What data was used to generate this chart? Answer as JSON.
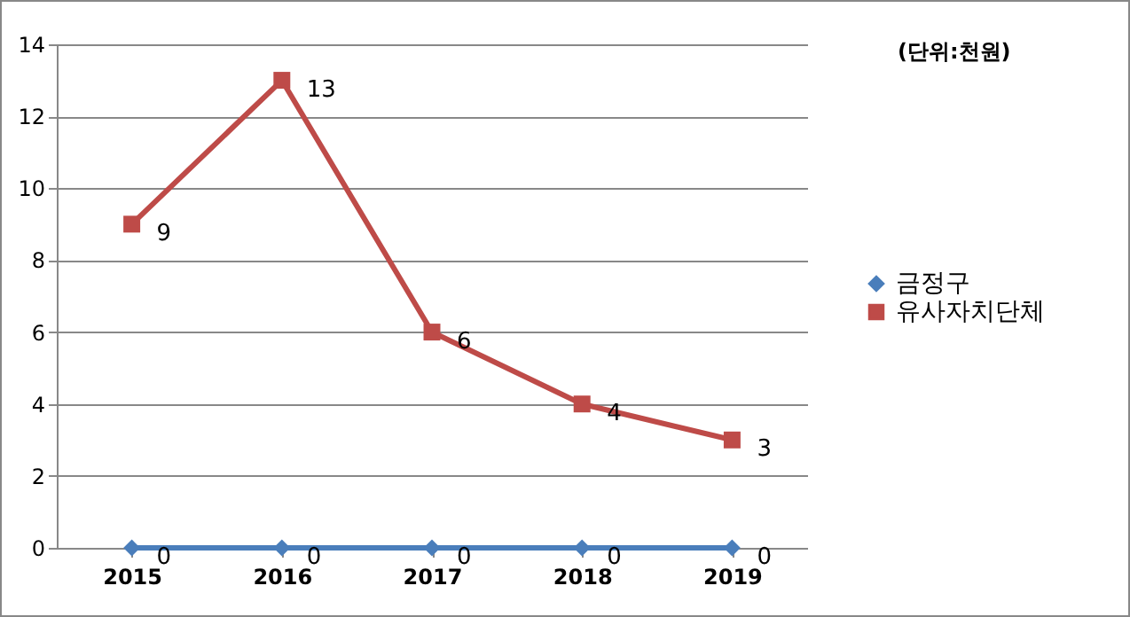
{
  "chart_data": {
    "type": "line",
    "categories": [
      "2015",
      "2016",
      "2017",
      "2018",
      "2019"
    ],
    "series": [
      {
        "name": "금정구",
        "color": "#4a7ebb",
        "marker": "diamond",
        "values": [
          0,
          0,
          0,
          0,
          0
        ]
      },
      {
        "name": "유사자치단체",
        "color": "#be4b48",
        "marker": "square",
        "values": [
          9,
          13,
          6,
          4,
          3
        ]
      }
    ],
    "ylim": [
      0,
      14
    ],
    "yticks": [
      0,
      2,
      4,
      6,
      8,
      10,
      12,
      14
    ],
    "grid": "y",
    "legend": "right",
    "data_labels": true,
    "annotations": [
      "(단위:천원)"
    ]
  }
}
